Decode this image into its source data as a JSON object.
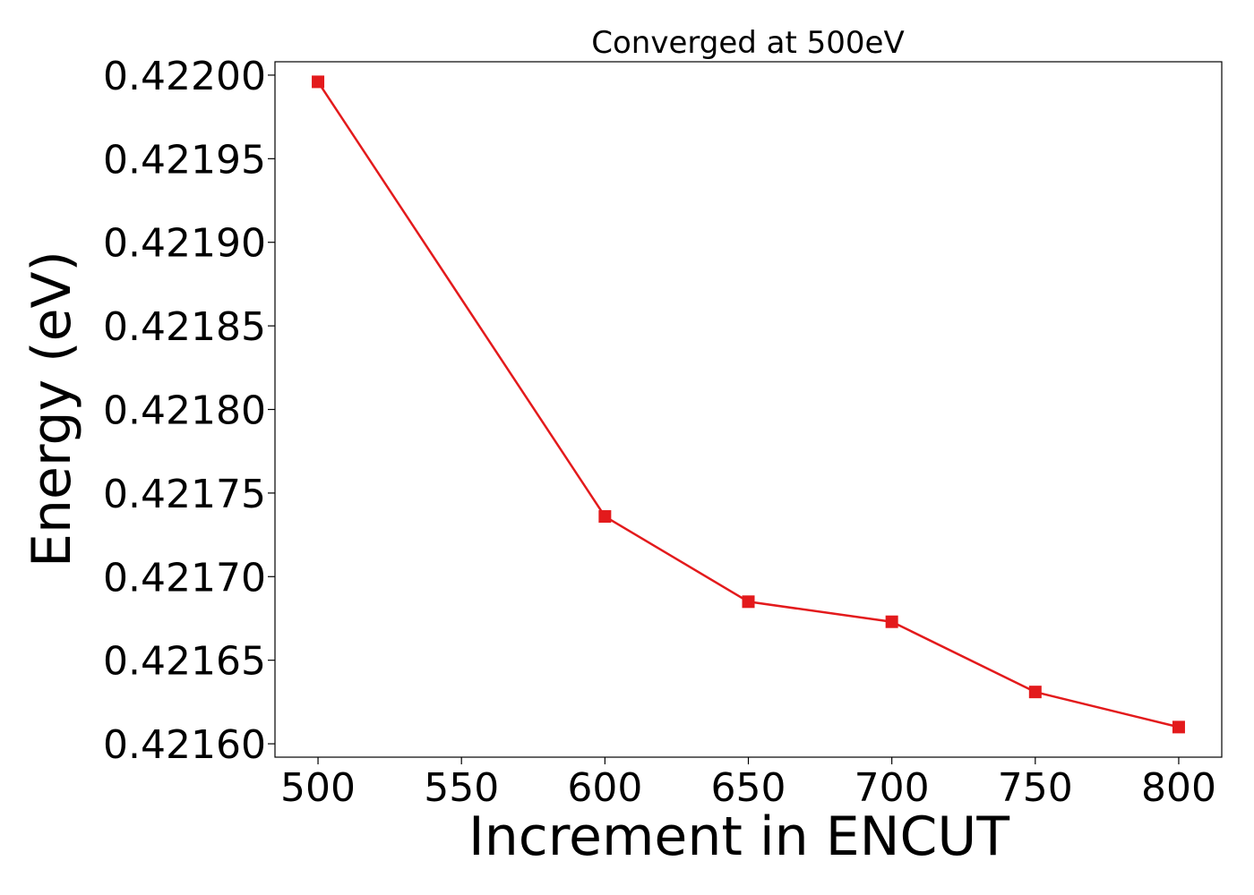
{
  "chart_data": {
    "type": "line",
    "title": "Converged at 500eV",
    "xlabel": "Increment in ENCUT",
    "ylabel": "Energy (eV)",
    "xlim": [
      485,
      815
    ],
    "ylim": [
      0.421592,
      0.422008
    ],
    "x_ticks": [
      500,
      550,
      600,
      650,
      700,
      750,
      800
    ],
    "y_ticks": [
      0.4216,
      0.42165,
      0.4217,
      0.42175,
      0.4218,
      0.42185,
      0.4219,
      0.42195,
      0.422
    ],
    "y_tick_decimals": 5,
    "grid": false,
    "legend": "none",
    "series": [
      {
        "x": [
          500,
          600,
          650,
          700,
          750,
          800
        ],
        "values": [
          0.421996,
          0.421736,
          0.421685,
          0.421673,
          0.421631,
          0.42161
        ],
        "color": "#e31a1c",
        "marker": "square"
      }
    ]
  }
}
